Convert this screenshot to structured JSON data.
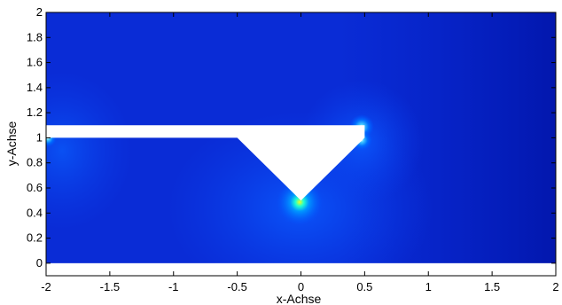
{
  "chart_data": {
    "type": "heatmap",
    "title": "",
    "xlabel": "x-Achse",
    "ylabel": "y-Achse",
    "xlim": [
      -2,
      2
    ],
    "ylim": [
      -0.1,
      2
    ],
    "grid": false,
    "legend": "none",
    "colormap": "jet",
    "x_ticks": [
      -2,
      -1.5,
      -1,
      -0.5,
      0,
      0.5,
      1,
      1.5,
      2
    ],
    "x_tick_labels": [
      "-2",
      "-1.5",
      "-1",
      "-0.5",
      "0",
      "0.5",
      "1",
      "1.5",
      "2"
    ],
    "y_ticks": [
      0,
      0.2,
      0.4,
      0.6,
      0.8,
      1,
      1.2,
      1.4,
      1.6,
      1.8,
      2
    ],
    "y_tick_labels": [
      "0",
      "0.2",
      "0.4",
      "0.6",
      "0.8",
      "1",
      "1.2",
      "1.4",
      "1.6",
      "1.8",
      "2"
    ],
    "excluded_regions": [
      {
        "shape": "polygon",
        "points": [
          [
            -2,
            1
          ],
          [
            -2,
            1.1
          ],
          [
            0.5,
            1.1
          ],
          [
            0.5,
            1
          ],
          [
            0,
            0.5
          ],
          [
            -0.5,
            1
          ]
        ]
      },
      {
        "shape": "rect",
        "x": [
          -2,
          2
        ],
        "y": [
          -0.1,
          0
        ]
      }
    ],
    "hotspots": [
      {
        "x": 0,
        "y": 0.5
      },
      {
        "x": 0.5,
        "y": 1.1
      },
      {
        "x": 0.5,
        "y": 1.0
      },
      {
        "x": -2,
        "y": 1.0
      }
    ]
  }
}
